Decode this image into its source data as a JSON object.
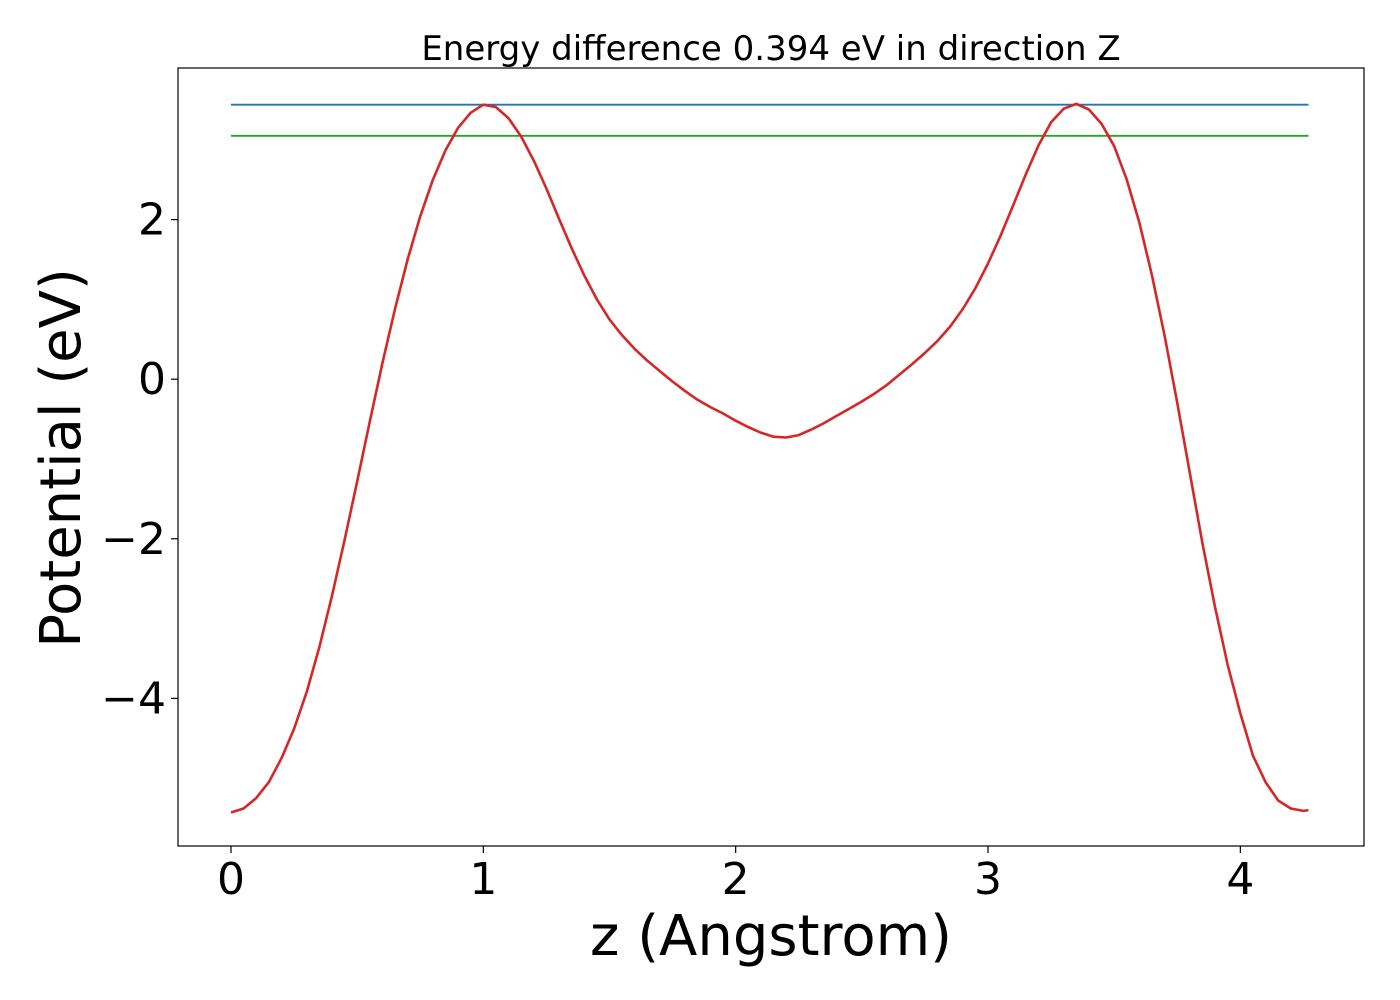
{
  "chart_data": {
    "type": "line",
    "title": "Energy difference 0.394 eV in direction Z",
    "xlabel": "z (Angstrom)",
    "ylabel": "Potential (eV)",
    "xlim": [
      -0.21,
      4.49
    ],
    "ylim": [
      -5.85,
      3.9
    ],
    "grid": false,
    "x_ticks": [
      0,
      1,
      2,
      3,
      4
    ],
    "x_tick_labels": [
      "0",
      "1",
      "2",
      "3",
      "4"
    ],
    "y_ticks": [
      -4,
      -2,
      0,
      2
    ],
    "y_tick_labels": [
      "−4",
      "−2",
      "0",
      "2"
    ],
    "series": [
      {
        "color": "#d62728",
        "x": [
          0.0,
          0.05,
          0.1,
          0.15,
          0.2,
          0.25,
          0.3,
          0.35,
          0.4,
          0.45,
          0.5,
          0.55,
          0.6,
          0.65,
          0.7,
          0.75,
          0.8,
          0.85,
          0.9,
          0.95,
          1.0,
          1.05,
          1.1,
          1.15,
          1.2,
          1.25,
          1.3,
          1.35,
          1.4,
          1.45,
          1.5,
          1.55,
          1.6,
          1.65,
          1.7,
          1.75,
          1.8,
          1.85,
          1.9,
          1.95,
          2.0,
          2.05,
          2.1,
          2.15,
          2.2,
          2.25,
          2.3,
          2.35,
          2.4,
          2.45,
          2.5,
          2.55,
          2.6,
          2.65,
          2.7,
          2.75,
          2.8,
          2.85,
          2.9,
          2.95,
          3.0,
          3.05,
          3.1,
          3.15,
          3.2,
          3.25,
          3.3,
          3.35,
          3.4,
          3.45,
          3.5,
          3.55,
          3.6,
          3.65,
          3.7,
          3.75,
          3.8,
          3.85,
          3.9,
          3.95,
          4.0,
          4.05,
          4.1,
          4.15,
          4.2,
          4.25,
          4.27
        ],
        "y": [
          -5.43,
          -5.38,
          -5.25,
          -5.05,
          -4.75,
          -4.38,
          -3.92,
          -3.36,
          -2.72,
          -2.02,
          -1.28,
          -0.53,
          0.2,
          0.88,
          1.5,
          2.04,
          2.5,
          2.87,
          3.15,
          3.34,
          3.44,
          3.41,
          3.27,
          3.04,
          2.74,
          2.39,
          2.01,
          1.64,
          1.3,
          1.0,
          0.75,
          0.55,
          0.38,
          0.23,
          0.1,
          -0.03,
          -0.15,
          -0.26,
          -0.35,
          -0.43,
          -0.52,
          -0.6,
          -0.67,
          -0.72,
          -0.73,
          -0.7,
          -0.63,
          -0.55,
          -0.46,
          -0.37,
          -0.28,
          -0.18,
          -0.07,
          0.06,
          0.19,
          0.33,
          0.48,
          0.66,
          0.88,
          1.14,
          1.45,
          1.8,
          2.18,
          2.57,
          2.93,
          3.22,
          3.39,
          3.45,
          3.38,
          3.2,
          2.92,
          2.5,
          1.96,
          1.3,
          0.54,
          -0.3,
          -1.18,
          -2.06,
          -2.86,
          -3.58,
          -4.19,
          -4.72,
          -5.05,
          -5.28,
          -5.38,
          -5.41,
          -5.4
        ]
      },
      {
        "color": "#1f77b4",
        "x": [
          0.0,
          4.27
        ],
        "y": [
          3.44,
          3.44
        ]
      },
      {
        "color": "#2ca02c",
        "x": [
          0.0,
          4.27
        ],
        "y": [
          3.05,
          3.05
        ]
      }
    ]
  }
}
